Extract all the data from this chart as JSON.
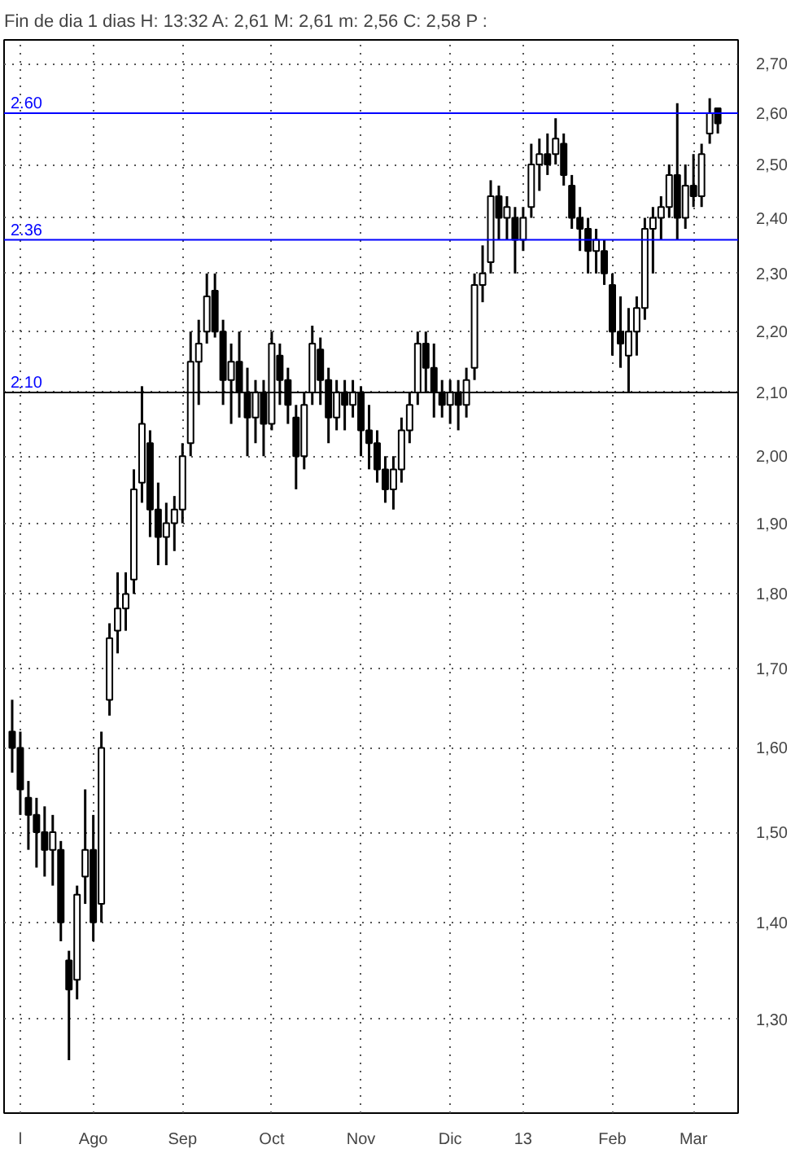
{
  "chart_data": {
    "type": "candlestick",
    "title": "Fin de dia 1 dias  H: 13:32  A: 2,61  M: 2,61  m: 2,56  C: 2,58  P :",
    "color": "#000000",
    "log": true,
    "grid": true,
    "categories": [
      null,
      "l",
      null,
      null,
      null,
      null,
      null,
      null,
      null,
      null,
      "Ago",
      null,
      null,
      null,
      null,
      null,
      null,
      null,
      null,
      null,
      null,
      "Sep",
      null,
      null,
      null,
      null,
      null,
      null,
      null,
      null,
      null,
      null,
      "Oct",
      null,
      null,
      null,
      null,
      null,
      null,
      null,
      null,
      null,
      null,
      "Nov",
      null,
      null,
      null,
      null,
      null,
      null,
      null,
      null,
      null,
      null,
      "Dic",
      null,
      null,
      null,
      null,
      null,
      null,
      null,
      null,
      "13",
      null,
      null,
      null,
      null,
      null,
      null,
      null,
      null,
      null,
      null,
      "Feb",
      null,
      null,
      null,
      null,
      null,
      null,
      null,
      null,
      null,
      "Mar",
      null,
      null,
      null
    ],
    "ohlc": [
      [
        1.62,
        1.66,
        1.57,
        1.6
      ],
      [
        1.6,
        1.62,
        1.52,
        1.55
      ],
      [
        1.54,
        1.56,
        1.48,
        1.52
      ],
      [
        1.52,
        1.54,
        1.46,
        1.5
      ],
      [
        1.5,
        1.53,
        1.45,
        1.48
      ],
      [
        1.48,
        1.52,
        1.44,
        1.5
      ],
      [
        1.48,
        1.49,
        1.38,
        1.4
      ],
      [
        1.36,
        1.37,
        1.26,
        1.33
      ],
      [
        1.34,
        1.44,
        1.32,
        1.43
      ],
      [
        1.45,
        1.55,
        1.42,
        1.48
      ],
      [
        1.48,
        1.52,
        1.38,
        1.4
      ],
      [
        1.42,
        1.62,
        1.4,
        1.6
      ],
      [
        1.66,
        1.76,
        1.64,
        1.74
      ],
      [
        1.75,
        1.83,
        1.72,
        1.78
      ],
      [
        1.78,
        1.83,
        1.75,
        1.8
      ],
      [
        1.82,
        1.98,
        1.8,
        1.95
      ],
      [
        1.96,
        2.11,
        1.93,
        2.05
      ],
      [
        2.02,
        2.04,
        1.88,
        1.92
      ],
      [
        1.92,
        1.96,
        1.84,
        1.88
      ],
      [
        1.88,
        1.93,
        1.84,
        1.9
      ],
      [
        1.9,
        1.94,
        1.86,
        1.92
      ],
      [
        1.92,
        2.02,
        1.9,
        2.0
      ],
      [
        2.02,
        2.2,
        2.0,
        2.15
      ],
      [
        2.15,
        2.22,
        2.08,
        2.18
      ],
      [
        2.2,
        2.3,
        2.18,
        2.26
      ],
      [
        2.27,
        2.3,
        2.19,
        2.2
      ],
      [
        2.2,
        2.22,
        2.08,
        2.12
      ],
      [
        2.12,
        2.18,
        2.05,
        2.15
      ],
      [
        2.15,
        2.2,
        2.06,
        2.1
      ],
      [
        2.1,
        2.14,
        2.0,
        2.06
      ],
      [
        2.06,
        2.12,
        2.02,
        2.1
      ],
      [
        2.1,
        2.12,
        2.0,
        2.05
      ],
      [
        2.05,
        2.2,
        2.04,
        2.18
      ],
      [
        2.16,
        2.18,
        2.08,
        2.12
      ],
      [
        2.12,
        2.14,
        2.05,
        2.08
      ],
      [
        2.06,
        2.08,
        1.95,
        2.0
      ],
      [
        2.0,
        2.1,
        1.98,
        2.08
      ],
      [
        2.1,
        2.21,
        2.08,
        2.18
      ],
      [
        2.17,
        2.19,
        2.08,
        2.12
      ],
      [
        2.12,
        2.14,
        2.02,
        2.06
      ],
      [
        2.06,
        2.12,
        2.04,
        2.1
      ],
      [
        2.1,
        2.12,
        2.04,
        2.08
      ],
      [
        2.08,
        2.12,
        2.06,
        2.1
      ],
      [
        2.1,
        2.11,
        2.0,
        2.04
      ],
      [
        2.04,
        2.08,
        1.98,
        2.02
      ],
      [
        2.02,
        2.04,
        1.96,
        1.98
      ],
      [
        1.98,
        2.0,
        1.93,
        1.95
      ],
      [
        1.95,
        2.0,
        1.92,
        1.98
      ],
      [
        1.98,
        2.06,
        1.96,
        2.04
      ],
      [
        2.04,
        2.1,
        2.02,
        2.08
      ],
      [
        2.1,
        2.2,
        2.08,
        2.18
      ],
      [
        2.18,
        2.2,
        2.1,
        2.14
      ],
      [
        2.14,
        2.18,
        2.06,
        2.1
      ],
      [
        2.1,
        2.12,
        2.06,
        2.08
      ],
      [
        2.08,
        2.12,
        2.05,
        2.1
      ],
      [
        2.1,
        2.12,
        2.04,
        2.08
      ],
      [
        2.08,
        2.14,
        2.06,
        2.12
      ],
      [
        2.14,
        2.3,
        2.12,
        2.28
      ],
      [
        2.28,
        2.35,
        2.25,
        2.3
      ],
      [
        2.32,
        2.47,
        2.3,
        2.44
      ],
      [
        2.44,
        2.46,
        2.36,
        2.4
      ],
      [
        2.4,
        2.44,
        2.36,
        2.42
      ],
      [
        2.4,
        2.42,
        2.3,
        2.36
      ],
      [
        2.36,
        2.42,
        2.34,
        2.4
      ],
      [
        2.42,
        2.54,
        2.4,
        2.5
      ],
      [
        2.5,
        2.55,
        2.45,
        2.52
      ],
      [
        2.52,
        2.56,
        2.48,
        2.5
      ],
      [
        2.52,
        2.59,
        2.5,
        2.55
      ],
      [
        2.54,
        2.56,
        2.46,
        2.48
      ],
      [
        2.46,
        2.48,
        2.38,
        2.4
      ],
      [
        2.4,
        2.42,
        2.34,
        2.38
      ],
      [
        2.38,
        2.4,
        2.3,
        2.34
      ],
      [
        2.34,
        2.38,
        2.3,
        2.36
      ],
      [
        2.34,
        2.36,
        2.28,
        2.3
      ],
      [
        2.28,
        2.3,
        2.16,
        2.2
      ],
      [
        2.2,
        2.26,
        2.14,
        2.18
      ],
      [
        2.16,
        2.24,
        2.1,
        2.2
      ],
      [
        2.2,
        2.26,
        2.16,
        2.24
      ],
      [
        2.24,
        2.4,
        2.22,
        2.38
      ],
      [
        2.38,
        2.42,
        2.3,
        2.4
      ],
      [
        2.4,
        2.44,
        2.36,
        2.42
      ],
      [
        2.42,
        2.5,
        2.4,
        2.48
      ],
      [
        2.48,
        2.62,
        2.36,
        2.4
      ],
      [
        2.4,
        2.5,
        2.38,
        2.46
      ],
      [
        2.46,
        2.52,
        2.42,
        2.44
      ],
      [
        2.44,
        2.54,
        2.42,
        2.52
      ],
      [
        2.56,
        2.63,
        2.54,
        2.6
      ],
      [
        2.61,
        2.61,
        2.56,
        2.58
      ]
    ],
    "ylim": [
      1.21,
      2.75
    ],
    "yticks": [
      {
        "value": 1.3,
        "label": "1,30"
      },
      {
        "value": 1.4,
        "label": "1,40"
      },
      {
        "value": 1.5,
        "label": "1,50"
      },
      {
        "value": 1.6,
        "label": "1,60"
      },
      {
        "value": 1.7,
        "label": "1,70"
      },
      {
        "value": 1.8,
        "label": "1,80"
      },
      {
        "value": 1.9,
        "label": "1,90"
      },
      {
        "value": 2.0,
        "label": "2,00"
      },
      {
        "value": 2.1,
        "label": "2,10"
      },
      {
        "value": 2.2,
        "label": "2,20"
      },
      {
        "value": 2.3,
        "label": "2,30"
      },
      {
        "value": 2.4,
        "label": "2,40"
      },
      {
        "value": 2.5,
        "label": "2,50"
      },
      {
        "value": 2.6,
        "label": "2,60"
      },
      {
        "value": 2.7,
        "label": "2,70"
      }
    ],
    "ref_lines": [
      {
        "axis": "y",
        "value": 2.6,
        "label": "2.60",
        "color": "#0000ff"
      },
      {
        "axis": "y",
        "value": 2.36,
        "label": "2.36",
        "color": "#0000ff"
      },
      {
        "axis": "y",
        "value": 2.1,
        "label": "2.10",
        "color": "#000000"
      }
    ]
  }
}
